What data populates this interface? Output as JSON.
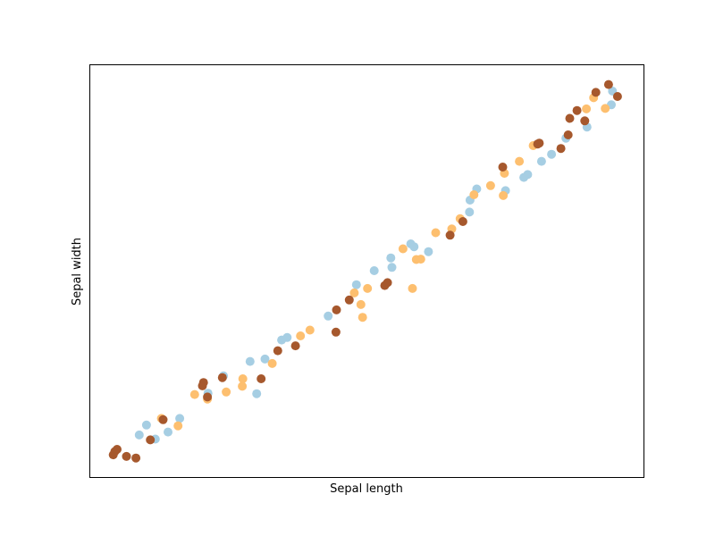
{
  "chart_data": {
    "type": "scatter",
    "title": "",
    "xlabel": "Sepal length",
    "ylabel": "Sepal width",
    "xlim": [
      0,
      100
    ],
    "ylim": [
      0,
      100
    ],
    "ticks": "none",
    "grid": false,
    "legend": "none",
    "series": [
      {
        "color": "#a6cee3",
        "points": [
          [
            9.0,
            10.2
          ],
          [
            10.3,
            12.6
          ],
          [
            11.9,
            9.2
          ],
          [
            14.2,
            10.9
          ],
          [
            16.3,
            14.2
          ],
          [
            21.4,
            20.3
          ],
          [
            24.2,
            24.5
          ],
          [
            29.0,
            28.0
          ],
          [
            30.2,
            20.2
          ],
          [
            31.7,
            28.6
          ],
          [
            34.7,
            33.2
          ],
          [
            35.7,
            33.8
          ],
          [
            43.1,
            39.0
          ],
          [
            48.2,
            46.6
          ],
          [
            51.4,
            50.0
          ],
          [
            54.4,
            53.1
          ],
          [
            54.6,
            50.8
          ],
          [
            58.0,
            56.5
          ],
          [
            58.6,
            55.8
          ],
          [
            61.2,
            54.6
          ],
          [
            68.6,
            64.2
          ],
          [
            68.7,
            67.1
          ],
          [
            69.9,
            69.8
          ],
          [
            75.1,
            69.4
          ],
          [
            78.4,
            72.6
          ],
          [
            79.1,
            73.3
          ],
          [
            81.6,
            76.5
          ],
          [
            83.4,
            78.2
          ],
          [
            86.0,
            82.1
          ],
          [
            89.8,
            84.8
          ],
          [
            94.2,
            90.2
          ],
          [
            94.4,
            93.5
          ]
        ]
      },
      {
        "color": "#fdbf6f",
        "points": [
          [
            13.0,
            14.2
          ],
          [
            16.0,
            12.4
          ],
          [
            19.0,
            20.0
          ],
          [
            21.3,
            18.9
          ],
          [
            24.7,
            20.6
          ],
          [
            27.6,
            22.0
          ],
          [
            27.7,
            23.8
          ],
          [
            33.0,
            27.5
          ],
          [
            38.1,
            34.2
          ],
          [
            39.8,
            35.6
          ],
          [
            47.8,
            44.6
          ],
          [
            49.0,
            41.8
          ],
          [
            49.3,
            38.7
          ],
          [
            50.2,
            45.7
          ],
          [
            56.6,
            55.3
          ],
          [
            58.3,
            45.7
          ],
          [
            59.0,
            52.7
          ],
          [
            59.8,
            52.8
          ],
          [
            62.5,
            59.2
          ],
          [
            65.4,
            60.1
          ],
          [
            66.9,
            62.6
          ],
          [
            69.4,
            68.4
          ],
          [
            72.4,
            70.6
          ],
          [
            74.7,
            68.2
          ],
          [
            74.9,
            73.6
          ],
          [
            77.6,
            76.5
          ],
          [
            80.1,
            80.3
          ],
          [
            89.7,
            89.2
          ],
          [
            91.0,
            91.9
          ],
          [
            93.1,
            89.3
          ]
        ]
      },
      {
        "color": "#a6582d",
        "points": [
          [
            4.3,
            5.4
          ],
          [
            4.6,
            6.2
          ],
          [
            5.0,
            6.7
          ],
          [
            6.7,
            5.0
          ],
          [
            8.4,
            4.6
          ],
          [
            11.0,
            9.0
          ],
          [
            13.3,
            13.9
          ],
          [
            20.4,
            22.1
          ],
          [
            20.6,
            22.9
          ],
          [
            21.3,
            19.4
          ],
          [
            24.0,
            24.1
          ],
          [
            31.0,
            23.8
          ],
          [
            34.0,
            30.6
          ],
          [
            37.2,
            31.8
          ],
          [
            44.5,
            35.1
          ],
          [
            44.6,
            40.5
          ],
          [
            46.9,
            42.9
          ],
          [
            53.3,
            46.4
          ],
          [
            53.8,
            47.1
          ],
          [
            65.1,
            58.6
          ],
          [
            67.4,
            61.9
          ],
          [
            74.6,
            75.1
          ],
          [
            80.9,
            80.7
          ],
          [
            81.2,
            80.9
          ],
          [
            85.1,
            79.6
          ],
          [
            86.4,
            82.9
          ],
          [
            86.7,
            86.9
          ],
          [
            88.0,
            88.8
          ],
          [
            89.4,
            86.3
          ],
          [
            91.4,
            93.2
          ],
          [
            93.7,
            95.1
          ],
          [
            95.3,
            92.2
          ]
        ]
      }
    ]
  }
}
